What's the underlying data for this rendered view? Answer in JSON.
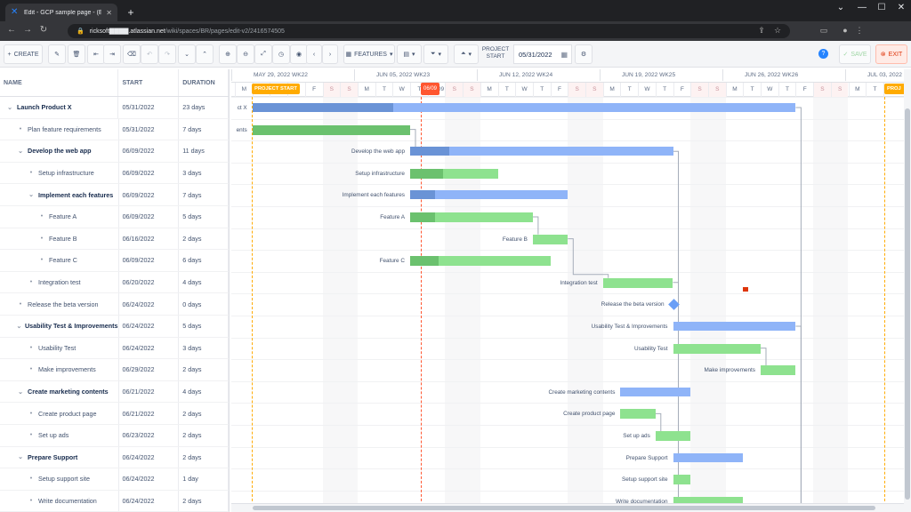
{
  "browser": {
    "tab_title": "Edit - GCP sample page - (Ext) M",
    "url_host": "ricksoft▇▇▇▇.atlassian.net",
    "url_path": "/wiki/spaces/BR/pages/edit-v2/2416574505"
  },
  "toolbar": {
    "create_label": "CREATE",
    "features_label": "FEATURES",
    "project_start_label": "PROJECT START",
    "project_start_value": "05/31/2022",
    "save_label": "SAVE",
    "exit_label": "EXIT"
  },
  "grid": {
    "headers": {
      "name": "NAME",
      "start": "START",
      "duration": "DURATION"
    },
    "rows": [
      {
        "name": "Launch Product X",
        "start": "05/31/2022",
        "duration": "23 days",
        "level": 0,
        "group": true
      },
      {
        "name": "Plan feature requirements",
        "start": "05/31/2022",
        "duration": "7 days",
        "level": 1,
        "group": false
      },
      {
        "name": "Develop the web app",
        "start": "06/09/2022",
        "duration": "11 days",
        "level": 1,
        "group": true
      },
      {
        "name": "Setup infrastructure",
        "start": "06/09/2022",
        "duration": "3 days",
        "level": 2,
        "group": false
      },
      {
        "name": "Implement each features",
        "start": "06/09/2022",
        "duration": "7 days",
        "level": 2,
        "group": true
      },
      {
        "name": "Feature A",
        "start": "06/09/2022",
        "duration": "5 days",
        "level": 3,
        "group": false
      },
      {
        "name": "Feature B",
        "start": "06/16/2022",
        "duration": "2 days",
        "level": 3,
        "group": false
      },
      {
        "name": "Feature C",
        "start": "06/09/2022",
        "duration": "6 days",
        "level": 3,
        "group": false
      },
      {
        "name": "Integration test",
        "start": "06/20/2022",
        "duration": "4 days",
        "level": 2,
        "group": false
      },
      {
        "name": "Release the beta version",
        "start": "06/24/2022",
        "duration": "0 days",
        "level": 1,
        "group": false
      },
      {
        "name": "Usability Test & Improvements",
        "start": "06/24/2022",
        "duration": "5 days",
        "level": 1,
        "group": true
      },
      {
        "name": "Usability Test",
        "start": "06/24/2022",
        "duration": "3 days",
        "level": 2,
        "group": false
      },
      {
        "name": "Make improvements",
        "start": "06/29/2022",
        "duration": "2 days",
        "level": 2,
        "group": false
      },
      {
        "name": "Create marketing contents",
        "start": "06/21/2022",
        "duration": "4 days",
        "level": 1,
        "group": true
      },
      {
        "name": "Create product page",
        "start": "06/21/2022",
        "duration": "2 days",
        "level": 2,
        "group": false
      },
      {
        "name": "Set up ads",
        "start": "06/23/2022",
        "duration": "2 days",
        "level": 2,
        "group": false
      },
      {
        "name": "Prepare Support",
        "start": "06/24/2022",
        "duration": "2 days",
        "level": 1,
        "group": true
      },
      {
        "name": "Setup support site",
        "start": "06/24/2022",
        "duration": "1 day",
        "level": 2,
        "group": false
      },
      {
        "name": "Write documentation",
        "start": "06/24/2022",
        "duration": "2 days",
        "level": 2,
        "group": false
      }
    ]
  },
  "timeline": {
    "weeks": [
      "MAY 29, 2022 WK22",
      "JUN 05, 2022 WK23",
      "JUN 12, 2022 WK24",
      "JUN 19, 2022 WK25",
      "JUN 26, 2022 WK26",
      "JUL 03, 2022"
    ],
    "days": [
      "M",
      "T",
      "W",
      "T",
      "F",
      "S",
      "S",
      "M",
      "T",
      "W",
      "T",
      "06/09",
      "S",
      "S",
      "M",
      "T",
      "W",
      "T",
      "F",
      "S",
      "S",
      "M",
      "T",
      "W",
      "T",
      "F",
      "S",
      "S",
      "M",
      "T",
      "W",
      "T",
      "F",
      "S",
      "S",
      "M",
      "T",
      "W"
    ],
    "project_start_flag": "PROJECT START",
    "today_flag": "06/09",
    "project_end_flag": "PROJ",
    "bar_labels": [
      "ct X",
      "ents",
      "Develop the web app",
      "Setup infrastructure",
      "Implement each features",
      "Feature A",
      "Feature B",
      "Feature C",
      "Integration test",
      "Release the beta version",
      "Usability Test & Improvements",
      "Usability Test",
      "Make improvements",
      "Create marketing contents",
      "Create product page",
      "Set up ads",
      "Prepare Support",
      "Setup support site",
      "Write documentation"
    ]
  },
  "colors": {
    "summary": "#8fb4f8",
    "task": "#8ee28f",
    "today": "#ff5630",
    "project": "#ffab00"
  }
}
